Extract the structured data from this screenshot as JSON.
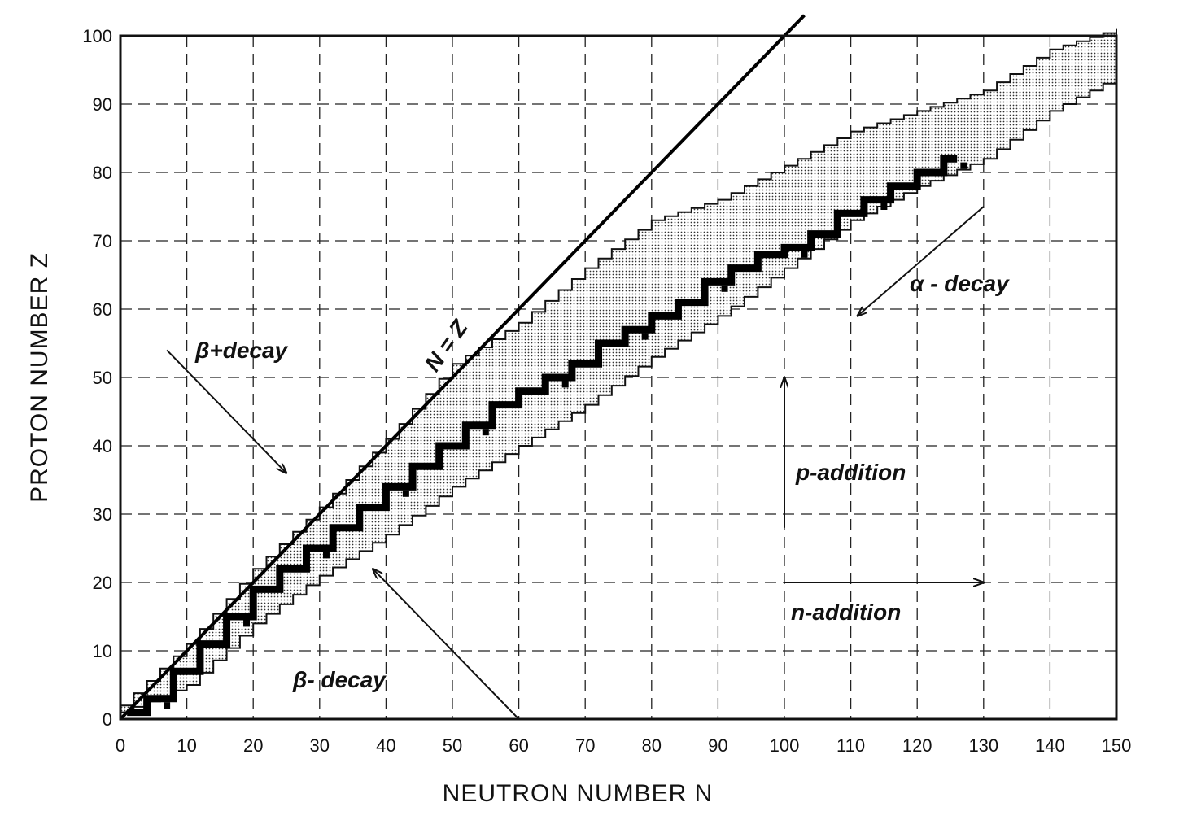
{
  "chart_data": {
    "type": "scatter",
    "title": "",
    "xlabel": "NEUTRON NUMBER N",
    "ylabel": "PROTON NUMBER Z",
    "xlim": [
      0,
      150
    ],
    "ylim": [
      0,
      100
    ],
    "xticks": [
      0,
      10,
      20,
      30,
      40,
      50,
      60,
      70,
      80,
      90,
      100,
      110,
      120,
      130,
      140,
      150
    ],
    "yticks": [
      0,
      10,
      20,
      30,
      40,
      50,
      60,
      70,
      80,
      90,
      100
    ],
    "grid": true,
    "line_label": "N = Z",
    "series": [
      {
        "name": "",
        "style": "shaded band (known nuclides)",
        "upper": [
          [
            0,
            2
          ],
          [
            10,
            11
          ],
          [
            20,
            22
          ],
          [
            30,
            31
          ],
          [
            40,
            41
          ],
          [
            50,
            52
          ],
          [
            60,
            58
          ],
          [
            70,
            66
          ],
          [
            80,
            73
          ],
          [
            90,
            76
          ],
          [
            100,
            81
          ],
          [
            110,
            86
          ],
          [
            120,
            89
          ],
          [
            130,
            92
          ],
          [
            140,
            98
          ],
          [
            150,
            101
          ]
        ],
        "lower": [
          [
            0,
            1
          ],
          [
            10,
            5
          ],
          [
            20,
            14
          ],
          [
            30,
            21
          ],
          [
            40,
            27
          ],
          [
            50,
            34
          ],
          [
            60,
            40
          ],
          [
            70,
            46
          ],
          [
            80,
            53
          ],
          [
            90,
            59
          ],
          [
            100,
            66
          ],
          [
            110,
            73
          ],
          [
            120,
            78
          ],
          [
            130,
            82
          ],
          [
            140,
            89
          ],
          [
            150,
            94
          ]
        ]
      },
      {
        "name": "",
        "style": "solid black staircase (stable nuclides)",
        "points": [
          [
            1,
            1
          ],
          [
            4,
            3
          ],
          [
            8,
            7
          ],
          [
            12,
            11
          ],
          [
            16,
            15
          ],
          [
            20,
            19
          ],
          [
            24,
            22
          ],
          [
            28,
            25
          ],
          [
            32,
            28
          ],
          [
            36,
            31
          ],
          [
            40,
            34
          ],
          [
            44,
            37
          ],
          [
            48,
            40
          ],
          [
            52,
            43
          ],
          [
            56,
            46
          ],
          [
            60,
            48
          ],
          [
            64,
            50
          ],
          [
            68,
            52
          ],
          [
            72,
            55
          ],
          [
            76,
            57
          ],
          [
            80,
            59
          ],
          [
            84,
            61
          ],
          [
            88,
            64
          ],
          [
            92,
            66
          ],
          [
            96,
            68
          ],
          [
            100,
            69
          ],
          [
            104,
            71
          ],
          [
            108,
            74
          ],
          [
            112,
            76
          ],
          [
            116,
            78
          ],
          [
            120,
            80
          ],
          [
            124,
            82
          ],
          [
            126,
            82
          ]
        ]
      }
    ],
    "annotations": [
      {
        "label": "β+ decay",
        "text": "β+decay",
        "from": [
          7,
          54
        ],
        "to": [
          25,
          36
        ]
      },
      {
        "label": "β- decay",
        "text": "β- decay",
        "from": [
          60,
          0
        ],
        "to": [
          38,
          22
        ]
      },
      {
        "label": "α-decay",
        "text": "α - decay",
        "from": [
          130,
          75
        ],
        "to": [
          111,
          59
        ]
      },
      {
        "label": "p-addition",
        "text": "p-addition",
        "from": [
          100,
          28
        ],
        "to": [
          100,
          50
        ]
      },
      {
        "label": "n-addition",
        "text": "n-addition",
        "from": [
          100,
          20
        ],
        "to": [
          130,
          20
        ]
      }
    ]
  }
}
